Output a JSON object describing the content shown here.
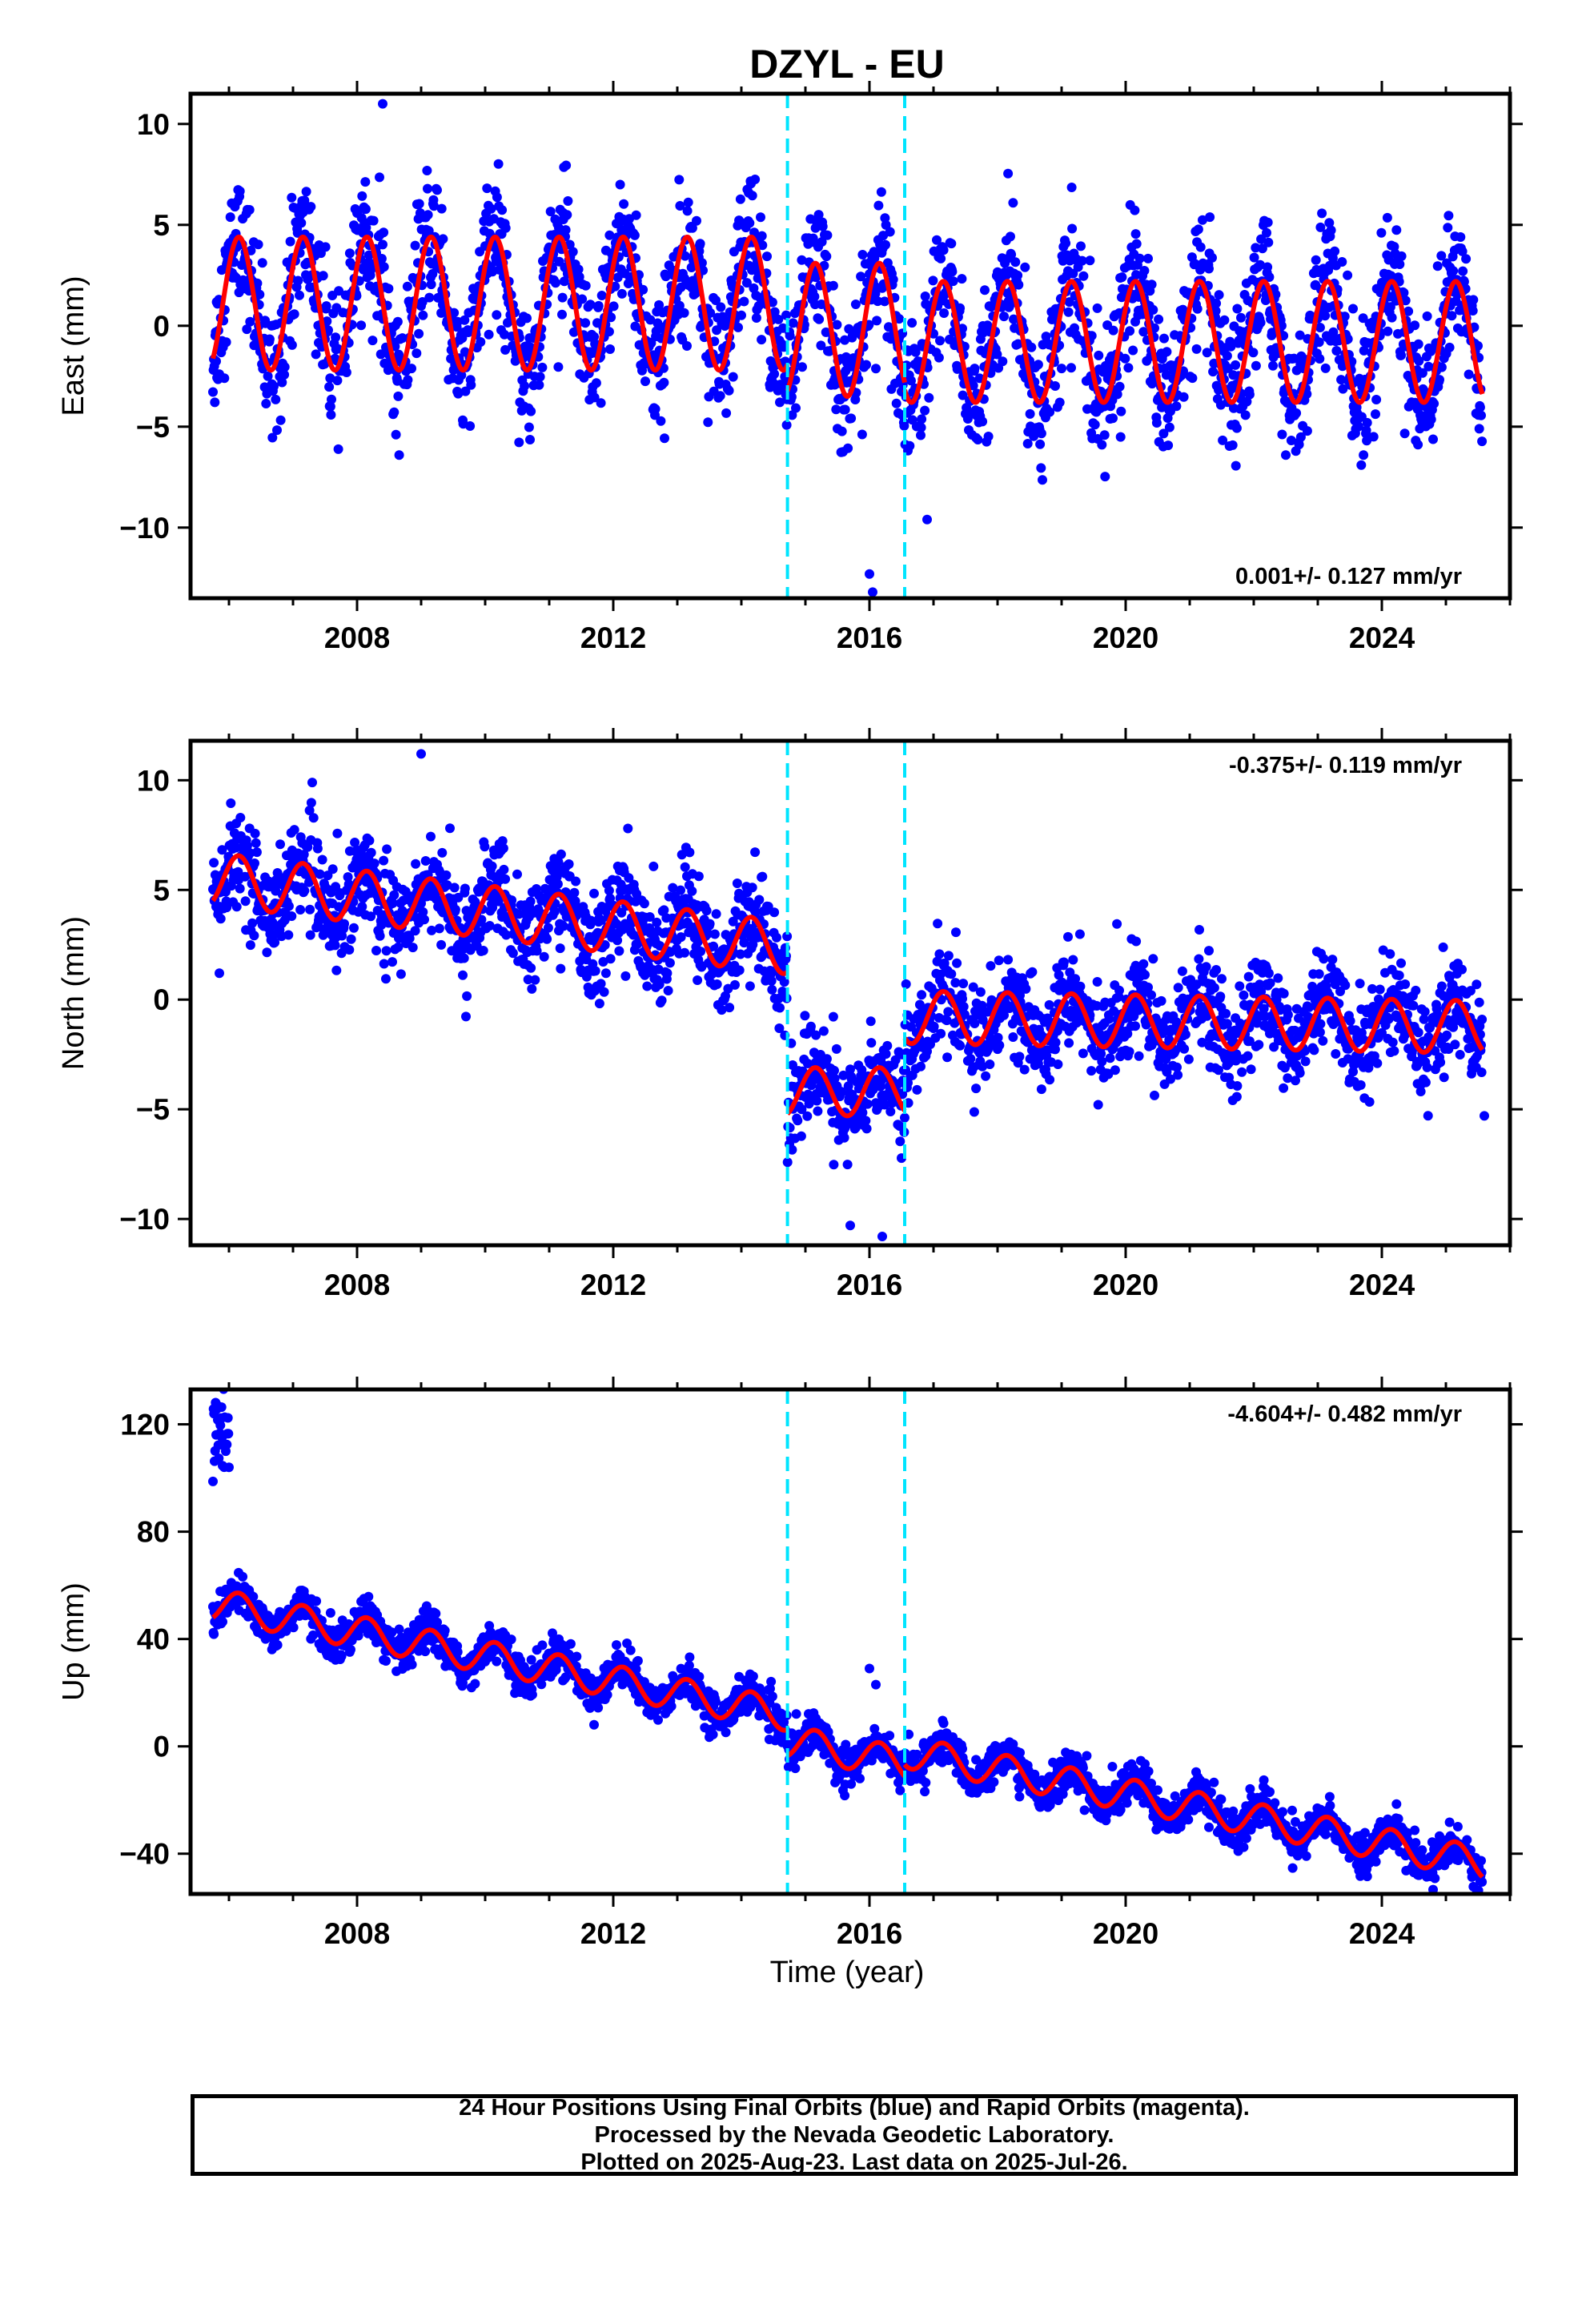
{
  "title": "DZYL - EU",
  "xlabel": "Time (year)",
  "colors": {
    "points": "#0000ff",
    "fit": "#ff0000",
    "breaks": "#00e5ff",
    "frame": "#000000"
  },
  "footer": {
    "line1": "24 Hour Positions Using Final Orbits (blue) and Rapid Orbits (magenta).",
    "line2": "Processed by the Nevada Geodetic Laboratory.",
    "line3": "Plotted on 2025-Aug-23. Last data on 2025-Jul-26."
  },
  "chart_data": [
    {
      "type": "scatter",
      "component": "East",
      "ylabel": "East (mm)",
      "rate_text": "0.001+/- 0.127 mm/yr",
      "rate_position": "bottom-right",
      "xlim": [
        2005.4,
        2026.0
      ],
      "ylim": [
        -13.5,
        11.5
      ],
      "xticks": [
        2008,
        2012,
        2016,
        2020,
        2024
      ],
      "yticks": [
        -10,
        -5,
        0,
        5,
        10
      ],
      "ytick_labels": [
        "−10",
        "−5",
        "0",
        "5",
        "10"
      ],
      "data_start": 2005.75,
      "data_end": 2025.57,
      "seasonal_amplitude": [
        3.3,
        3.3,
        3.0
      ],
      "scatter_noise": 1.6,
      "segments": [
        {
          "start": 2005.75,
          "end": 2014.72,
          "offset": 1.1
        },
        {
          "start": 2014.72,
          "end": 2016.55,
          "offset": -0.2
        },
        {
          "start": 2016.55,
          "end": 2025.57,
          "offset": -0.8
        }
      ],
      "breaks": [
        2014.72,
        2016.55
      ],
      "outliers": [
        [
          2008.4,
          11.0
        ],
        [
          2016.0,
          -12.3
        ],
        [
          2016.05,
          -13.2
        ],
        [
          2016.9,
          -9.6
        ]
      ]
    },
    {
      "type": "scatter",
      "component": "North",
      "ylabel": "North (mm)",
      "rate_text": "-0.375+/- 0.119 mm/yr",
      "rate_position": "top-right",
      "xlim": [
        2005.4,
        2026.0
      ],
      "ylim": [
        -11.2,
        11.8
      ],
      "xticks": [
        2008,
        2012,
        2016,
        2020,
        2024
      ],
      "yticks": [
        -10,
        -5,
        0,
        5,
        10
      ],
      "ytick_labels": [
        "−10",
        "−5",
        "0",
        "5",
        "10"
      ],
      "data_start": 2005.75,
      "data_end": 2025.57,
      "seasonal_amplitude": [
        1.2,
        1.1,
        1.2
      ],
      "scatter_noise": 1.1,
      "segments": [
        {
          "start": 2005.75,
          "end": 2014.72,
          "offset": 5.5,
          "trend": -0.35
        },
        {
          "start": 2014.72,
          "end": 2016.55,
          "offset": -4.2,
          "trend": 0.0
        },
        {
          "start": 2016.55,
          "end": 2025.57,
          "offset": -0.8,
          "trend": -0.05
        }
      ],
      "breaks": [
        2014.72,
        2016.55
      ],
      "outliers": [
        [
          2005.85,
          1.2
        ],
        [
          2009.0,
          11.2
        ],
        [
          2015.7,
          -10.3
        ],
        [
          2016.2,
          -10.8
        ],
        [
          2025.6,
          -5.3
        ]
      ]
    },
    {
      "type": "scatter",
      "component": "Up",
      "ylabel": "Up (mm)",
      "rate_text": "-4.604+/- 0.482 mm/yr",
      "rate_position": "top-right",
      "xlim": [
        2005.4,
        2026.0
      ],
      "ylim": [
        -55,
        133
      ],
      "xticks": [
        2008,
        2012,
        2016,
        2020,
        2024
      ],
      "yticks": [
        -40,
        0,
        40,
        80,
        120
      ],
      "ytick_labels": [
        "−40",
        "0",
        "40",
        "80",
        "120"
      ],
      "data_start": 2005.75,
      "data_end": 2025.57,
      "seasonal_amplitude": [
        6.0,
        6.0,
        6.0
      ],
      "scatter_noise": 3.5,
      "early_cluster": {
        "start": 2005.75,
        "end": 2006.0,
        "center": 115,
        "spread": 7
      },
      "segments": [
        {
          "start": 2005.75,
          "end": 2014.72,
          "offset": 53,
          "trend": -4.6
        },
        {
          "start": 2014.72,
          "end": 2016.55,
          "offset": 2,
          "trend": -4.6
        },
        {
          "start": 2016.55,
          "end": 2025.57,
          "offset": -2,
          "trend": -4.6
        }
      ],
      "breaks": [
        2014.72,
        2016.55
      ],
      "outliers": [
        [
          2016.0,
          29
        ],
        [
          2016.1,
          23
        ],
        [
          2006.0,
          104
        ]
      ]
    }
  ]
}
